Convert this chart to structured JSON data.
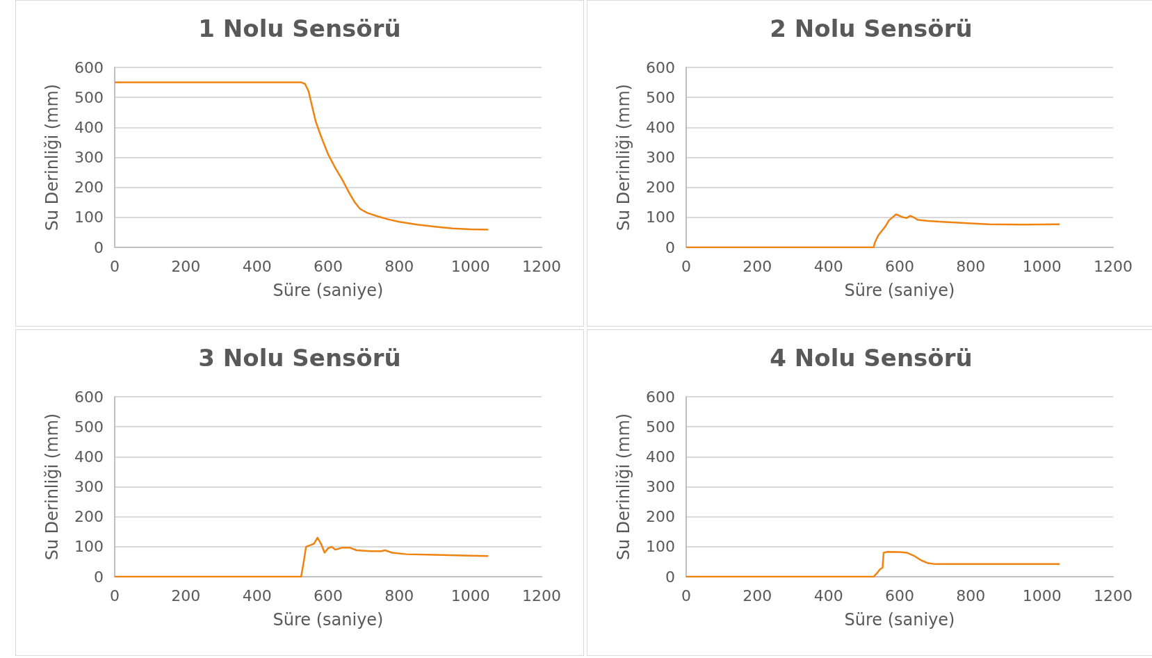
{
  "chart_data": [
    {
      "type": "line",
      "title": "1 Nolu Sensörü",
      "xlabel": "Süre (saniye)",
      "ylabel": "Su Derinliği (mm)",
      "xlim": [
        0,
        1200
      ],
      "xticks": [
        0,
        200,
        400,
        600,
        800,
        1000,
        1200
      ],
      "ylim": [
        0,
        600
      ],
      "yticks": [
        0,
        100,
        200,
        300,
        400,
        500,
        600
      ],
      "grid": "y",
      "marker": "none",
      "line_style": "solid",
      "series": [
        {
          "color": "#f0820f",
          "x": [
            0,
            525,
            535,
            545,
            555,
            565,
            580,
            600,
            620,
            640,
            660,
            675,
            690,
            710,
            740,
            770,
            800,
            850,
            900,
            950,
            1000,
            1050
          ],
          "values": [
            550,
            550,
            545,
            520,
            470,
            420,
            370,
            310,
            265,
            225,
            180,
            150,
            128,
            115,
            103,
            93,
            85,
            76,
            69,
            63,
            60,
            59
          ]
        }
      ]
    },
    {
      "type": "line",
      "title": "2 Nolu Sensörü",
      "xlabel": "Süre (saniye)",
      "ylabel": "Su Derinliği (mm)",
      "xlim": [
        0,
        1200
      ],
      "xticks": [
        0,
        200,
        400,
        600,
        800,
        1000,
        1200
      ],
      "ylim": [
        0,
        600
      ],
      "yticks": [
        0,
        100,
        200,
        300,
        400,
        500,
        600
      ],
      "grid": "y",
      "marker": "none",
      "line_style": "solid",
      "series": [
        {
          "color": "#f0820f",
          "x": [
            0,
            527,
            530,
            540,
            550,
            560,
            570,
            580,
            590,
            600,
            610,
            620,
            630,
            640,
            650,
            680,
            720,
            800,
            850,
            950,
            1050
          ],
          "values": [
            0,
            0,
            15,
            40,
            55,
            70,
            90,
            100,
            110,
            105,
            100,
            98,
            105,
            100,
            92,
            88,
            85,
            80,
            77,
            76,
            77
          ]
        }
      ]
    },
    {
      "type": "line",
      "title": "3 Nolu Sensörü",
      "xlabel": "Süre (saniye)",
      "ylabel": "Su Derinliği (mm)",
      "xlim": [
        0,
        1200
      ],
      "xticks": [
        0,
        200,
        400,
        600,
        800,
        1000,
        1200
      ],
      "ylim": [
        0,
        600
      ],
      "yticks": [
        0,
        100,
        200,
        300,
        400,
        500,
        600
      ],
      "grid": "y",
      "marker": "none",
      "line_style": "solid",
      "series": [
        {
          "color": "#f0820f",
          "x": [
            0,
            524,
            530,
            538,
            550,
            560,
            570,
            580,
            590,
            600,
            610,
            620,
            640,
            660,
            680,
            720,
            750,
            760,
            780,
            820,
            900,
            1000,
            1050
          ],
          "values": [
            0,
            0,
            40,
            100,
            105,
            110,
            130,
            110,
            80,
            95,
            100,
            90,
            97,
            97,
            88,
            85,
            85,
            88,
            80,
            75,
            73,
            70,
            69
          ]
        }
      ]
    },
    {
      "type": "line",
      "title": "4 Nolu Sensörü",
      "xlabel": "Süre (saniye)",
      "ylabel": "Su Derinliği (mm)",
      "xlim": [
        0,
        1200
      ],
      "xticks": [
        0,
        200,
        400,
        600,
        800,
        1000,
        1200
      ],
      "ylim": [
        0,
        600
      ],
      "yticks": [
        0,
        100,
        200,
        300,
        400,
        500,
        600
      ],
      "grid": "y",
      "marker": "none",
      "line_style": "solid",
      "series": [
        {
          "color": "#f0820f",
          "x": [
            0,
            527,
            535,
            545,
            552,
            555,
            565,
            600,
            620,
            640,
            660,
            680,
            700,
            1050
          ],
          "values": [
            0,
            0,
            10,
            25,
            30,
            80,
            83,
            82,
            80,
            70,
            55,
            45,
            42,
            42
          ]
        }
      ]
    }
  ]
}
